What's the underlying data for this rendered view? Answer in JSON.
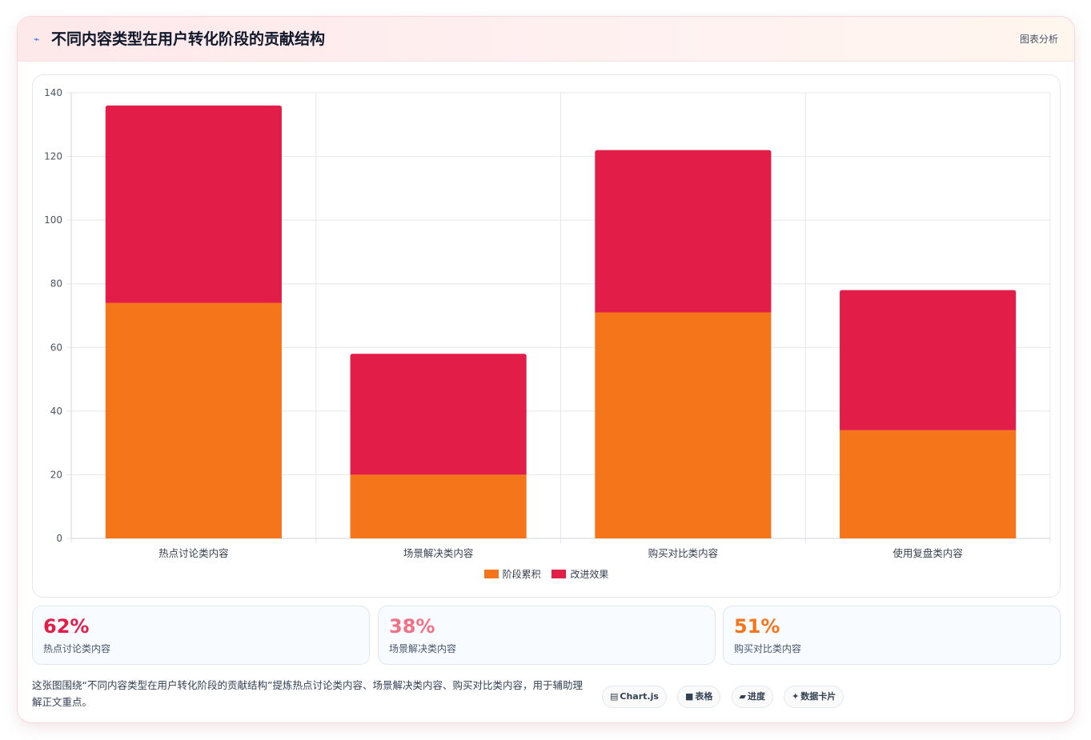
{
  "header": {
    "icon": "chart-line-icon",
    "icon_glyph": "⌁",
    "title": "不同内容类型在用户转化阶段的贡献结构",
    "link_label": "图表分析"
  },
  "chart_data": {
    "type": "bar",
    "stacked": true,
    "categories": [
      "热点讨论类内容",
      "场景解决类内容",
      "购买对比类内容",
      "使用复盘类内容"
    ],
    "series": [
      {
        "name": "阶段累积",
        "values": [
          74,
          20,
          71,
          34
        ],
        "color": "#f5761a"
      },
      {
        "name": "改进效果",
        "values": [
          62,
          38,
          51,
          44
        ],
        "color": "#e11d48"
      }
    ],
    "title": "",
    "xlabel": "",
    "ylabel": "",
    "ylim": [
      0,
      140
    ],
    "yticks": [
      0,
      20,
      40,
      60,
      80,
      100,
      120,
      140
    ],
    "grid": true,
    "legend": "bottom-center"
  },
  "stats": [
    {
      "value": "62%",
      "label": "热点讨论类内容",
      "color": "#e11d48"
    },
    {
      "value": "38%",
      "label": "场景解决类内容",
      "color": "#f07284"
    },
    {
      "value": "51%",
      "label": "购买对比类内容",
      "color": "#f5761a"
    }
  ],
  "footer": {
    "description": "这张图围绕“不同内容类型在用户转化阶段的贡献结构”提炼热点讨论类内容、场景解决类内容、购买对比类内容，用于辅助理解正文重点。",
    "chips": [
      {
        "icon": "chart-icon",
        "glyph": "▤",
        "label": "Chart.js"
      },
      {
        "icon": "table-icon",
        "glyph": "■",
        "label": "表格"
      },
      {
        "icon": "progress-icon",
        "glyph": "▰",
        "label": "进度"
      },
      {
        "icon": "sparkle-icon",
        "glyph": "✦",
        "label": "数据卡片"
      }
    ]
  }
}
